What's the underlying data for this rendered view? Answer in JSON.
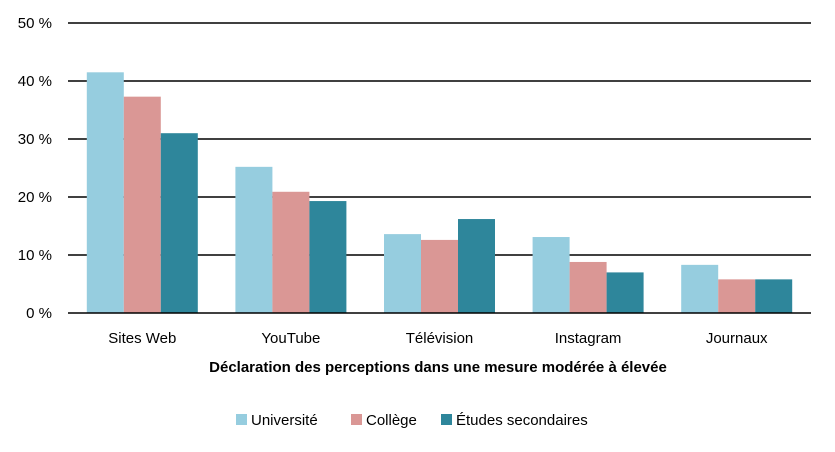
{
  "chart_data": {
    "type": "bar",
    "title": "",
    "xlabel": "Déclaration des perceptions dans une mesure modérée à élevée",
    "ylabel": "",
    "ylim": [
      0,
      50
    ],
    "yticks": [
      0,
      10,
      20,
      30,
      40,
      50
    ],
    "ytick_labels": [
      "0 %",
      "10 %",
      "20 %",
      "30 %",
      "40 %",
      "50 %"
    ],
    "grid": true,
    "legend_position": "bottom",
    "categories": [
      "Sites Web",
      "YouTube",
      "Télévision",
      "Instagram",
      "Journaux"
    ],
    "series": [
      {
        "name": "Université",
        "color": "#96CDDF",
        "values": [
          41.5,
          25.2,
          13.6,
          13.1,
          8.3
        ]
      },
      {
        "name": "Collège",
        "color": "#DA9795",
        "values": [
          37.3,
          20.9,
          12.6,
          8.8,
          5.8
        ]
      },
      {
        "name": "Études secondaires",
        "color": "#2E869B",
        "values": [
          31.0,
          19.3,
          16.2,
          7.0,
          5.8
        ]
      }
    ]
  }
}
